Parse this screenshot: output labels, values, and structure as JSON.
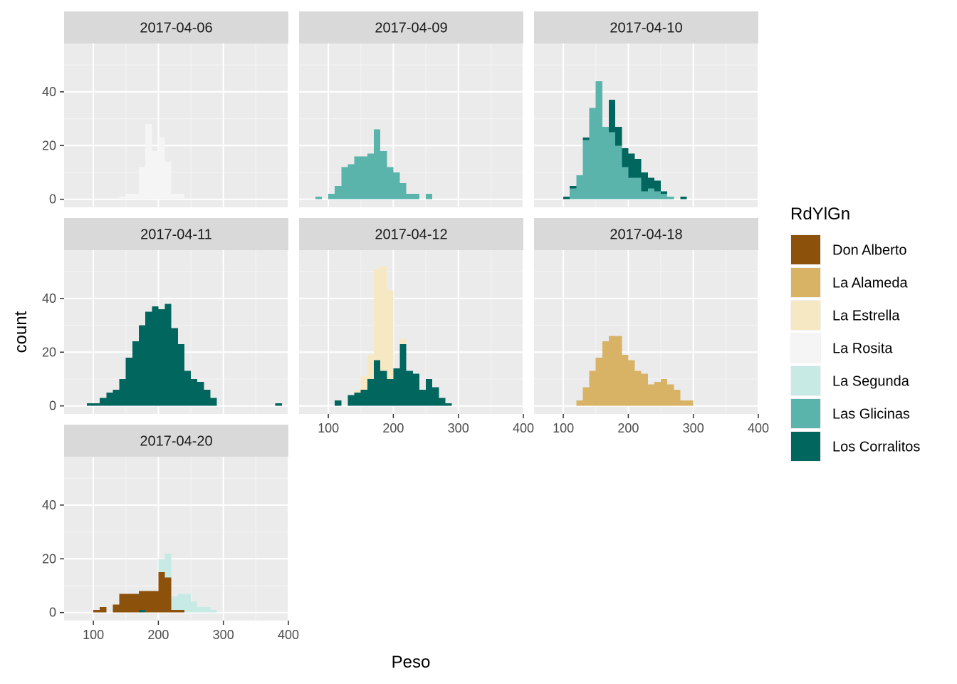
{
  "chart_data": {
    "type": "bar",
    "chart_kind": "faceted stacked histogram",
    "xlabel": "Peso",
    "ylabel": "count",
    "xlim": [
      55,
      400
    ],
    "ylim": [
      -3,
      58
    ],
    "xticks": [
      100,
      200,
      300,
      400
    ],
    "yticks": [
      0,
      20,
      40
    ],
    "bin_width": 10,
    "grid": true,
    "legend": {
      "title": "RdYlGn",
      "position": "right",
      "entries": [
        {
          "name": "Don Alberto",
          "color": "#8C510A"
        },
        {
          "name": "La Alameda",
          "color": "#D8B365"
        },
        {
          "name": "La Estrella",
          "color": "#F6E8C3"
        },
        {
          "name": "La Rosita",
          "color": "#F5F5F5"
        },
        {
          "name": "La Segunda",
          "color": "#C7EAE5"
        },
        {
          "name": "Las Glicinas",
          "color": "#5AB4AC"
        },
        {
          "name": "Los Corralitos",
          "color": "#01665E"
        }
      ]
    },
    "facets": [
      {
        "label": "2017-04-06",
        "series": [
          {
            "name": "La Rosita",
            "x": [
              140,
              150,
              160,
              170,
              180,
              190,
              200,
              210,
              220,
              230,
              240
            ],
            "values": [
              1,
              2,
              2,
              12,
              28,
              18,
              23,
              14,
              2,
              2,
              0
            ]
          }
        ]
      },
      {
        "label": "2017-04-09",
        "series": [
          {
            "name": "Las Glicinas",
            "x": [
              80,
              90,
              100,
              110,
              120,
              130,
              140,
              150,
              160,
              170,
              180,
              190,
              200,
              210,
              220,
              230,
              240,
              250
            ],
            "values": [
              1,
              0,
              2,
              5,
              12,
              13,
              16,
              16,
              17,
              26,
              18,
              12,
              10,
              6,
              2,
              2,
              0,
              2
            ]
          }
        ]
      },
      {
        "label": "2017-04-10",
        "series": [
          {
            "name": "Las Glicinas",
            "x": [
              100,
              110,
              120,
              130,
              140,
              150,
              160,
              170,
              180,
              190,
              200,
              210,
              220,
              230,
              240,
              250,
              260,
              270,
              280
            ],
            "values": [
              0,
              4,
              9,
              22,
              34,
              44,
              27,
              25,
              20,
              12,
              8,
              8,
              3,
              4,
              3,
              2,
              1,
              0,
              0
            ]
          },
          {
            "name": "Los Corralitos",
            "x": [
              100,
              110,
              120,
              130,
              140,
              150,
              160,
              170,
              180,
              190,
              200,
              210,
              220,
              230,
              240,
              250,
              260,
              270,
              280
            ],
            "values": [
              1,
              1,
              0,
              1,
              0,
              0,
              0,
              12,
              7,
              7,
              9,
              7,
              7,
              4,
              4,
              1,
              0,
              0,
              1
            ]
          }
        ]
      },
      {
        "label": "2017-04-11",
        "series": [
          {
            "name": "Los Corralitos",
            "x": [
              90,
              100,
              110,
              120,
              130,
              140,
              150,
              160,
              170,
              180,
              190,
              200,
              210,
              220,
              230,
              240,
              250,
              260,
              270,
              280,
              290,
              300,
              310,
              320,
              330,
              340,
              350,
              360,
              370,
              380
            ],
            "values": [
              1,
              1,
              3,
              5,
              6,
              10,
              18,
              24,
              30,
              35,
              37,
              36,
              38,
              29,
              23,
              13,
              10,
              9,
              6,
              3,
              0,
              0,
              0,
              0,
              0,
              0,
              0,
              0,
              0,
              1
            ]
          }
        ]
      },
      {
        "label": "2017-04-12",
        "series": [
          {
            "name": "Los Corralitos",
            "x": [
              110,
              120,
              130,
              140,
              150,
              160,
              170,
              180,
              190,
              200,
              210,
              220,
              230,
              240,
              250,
              260,
              270,
              280
            ],
            "values": [
              2,
              0,
              4,
              5,
              6,
              10,
              17,
              13,
              10,
              14,
              23,
              13,
              12,
              6,
              10,
              7,
              3,
              1
            ]
          },
          {
            "name": "La Estrella",
            "x": [
              110,
              120,
              130,
              140,
              150,
              160,
              170,
              180,
              190,
              200,
              210,
              220,
              230,
              240,
              250,
              260,
              270,
              280
            ],
            "values": [
              0,
              0,
              0,
              1,
              5,
              9,
              34,
              39,
              33,
              0,
              2,
              0,
              0,
              0,
              0,
              0,
              0,
              0
            ]
          }
        ]
      },
      {
        "label": "2017-04-18",
        "series": [
          {
            "name": "La Alameda",
            "x": [
              120,
              130,
              140,
              150,
              160,
              170,
              180,
              190,
              200,
              210,
              220,
              230,
              240,
              250,
              260,
              270,
              280,
              290
            ],
            "values": [
              2,
              7,
              13,
              18,
              24,
              26,
              26,
              19,
              17,
              13,
              12,
              8,
              9,
              10,
              8,
              6,
              2,
              2
            ]
          }
        ]
      },
      {
        "label": "2017-04-20",
        "series": [
          {
            "name": "Los Corralitos",
            "x": [
              130,
              140,
              150,
              160,
              170,
              180,
              190,
              200,
              210,
              220,
              230,
              240,
              250,
              260,
              270,
              280
            ],
            "values": [
              0,
              0,
              0,
              0,
              1,
              0,
              0,
              0,
              0,
              0,
              0,
              0,
              0,
              0,
              0,
              0
            ]
          },
          {
            "name": "Don Alberto",
            "x": [
              90,
              100,
              110,
              120,
              130,
              140,
              150,
              160,
              170,
              180,
              190,
              200,
              210,
              220,
              230,
              240,
              250,
              260,
              270,
              280
            ],
            "values": [
              0,
              1,
              2,
              0,
              3,
              7,
              7,
              7,
              7,
              8,
              8,
              15,
              13,
              1,
              1,
              0,
              0,
              0,
              0,
              0
            ]
          },
          {
            "name": "La Segunda",
            "x": [
              90,
              100,
              110,
              120,
              130,
              140,
              150,
              160,
              170,
              180,
              190,
              200,
              210,
              220,
              230,
              240,
              250,
              260,
              270,
              280
            ],
            "values": [
              0,
              0,
              0,
              0,
              0,
              0,
              0,
              0,
              0,
              0,
              0,
              5,
              9,
              5,
              6,
              7,
              4,
              2,
              2,
              1
            ]
          }
        ]
      }
    ]
  }
}
